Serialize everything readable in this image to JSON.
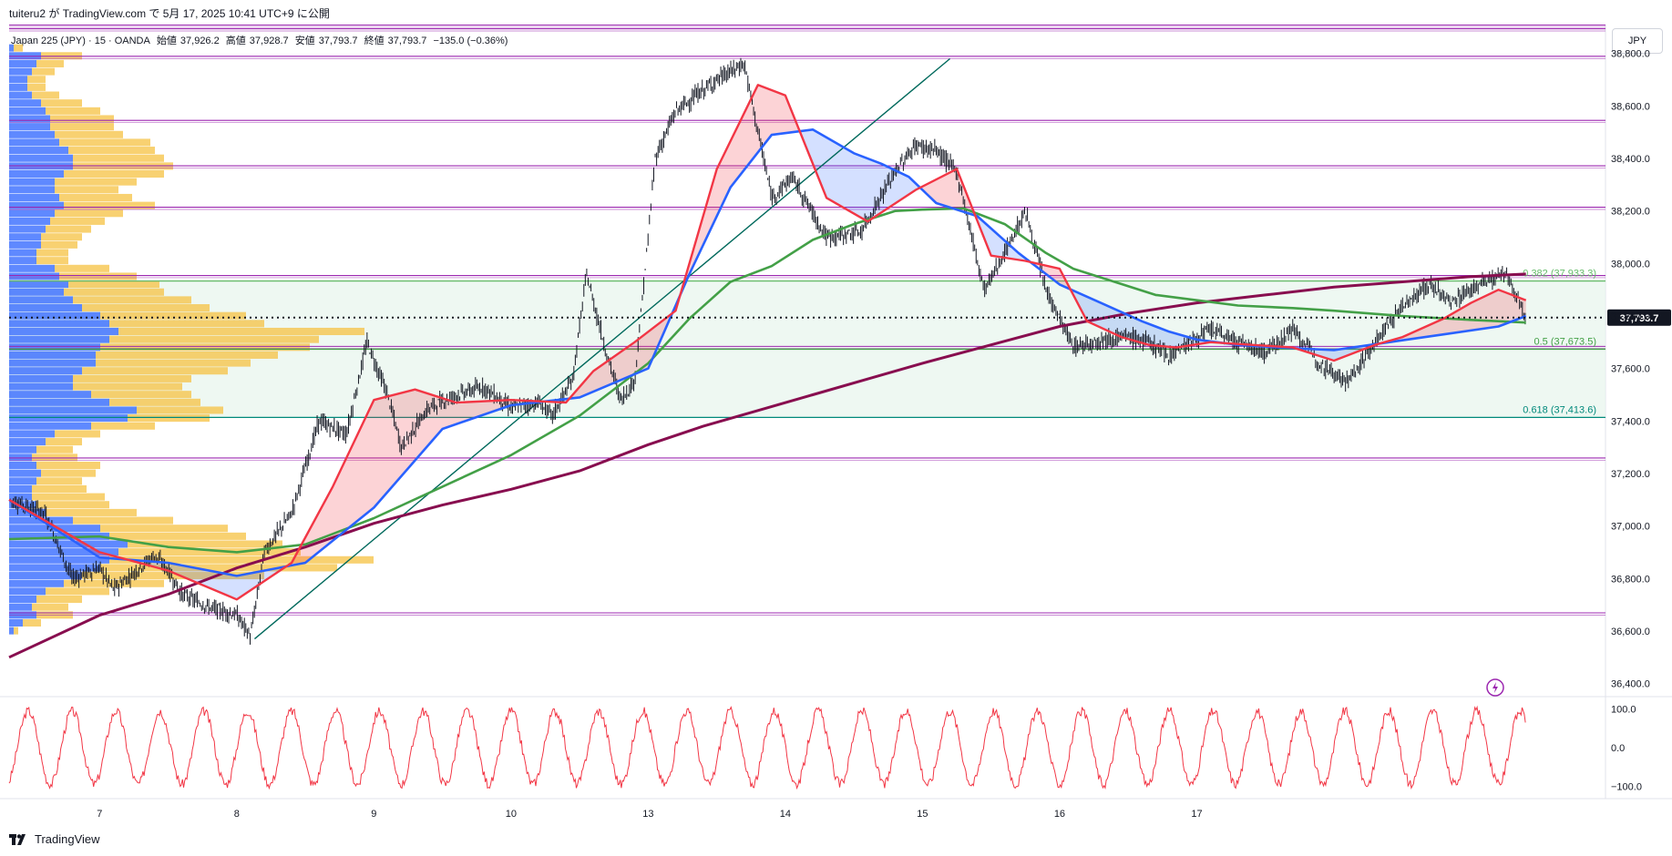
{
  "header": {
    "publish_line": "tuiteru2 が TradingView.com で 5月 17, 2025 10:41 UTC+9 に公開"
  },
  "symbol_info": {
    "name": "Japan 225 (JPY) · 15 · OANDA",
    "open_label": "始値",
    "open": "37,926.2",
    "high_label": "高値",
    "high": "37,928.7",
    "low_label": "安値",
    "low": "37,793.7",
    "close_label": "終値",
    "close": "37,793.7",
    "change": "−135.0 (−0.36%)"
  },
  "currency": "JPY",
  "footer": {
    "brand": "TradingView"
  },
  "colors": {
    "bull": "#131722",
    "ema_fast": "#f23645",
    "ema_mid": "#2962ff",
    "ema_green": "#43a047",
    "ema_long": "#880e4f",
    "level_line": "#9c27b0",
    "fib_fill": "#e8f5ee",
    "fib_0382": "#66bb6a",
    "fib_05": "#43a047",
    "fib_0618": "#00897b",
    "profile_blue": "#2962ff",
    "profile_yellow": "#f5c242",
    "oscillator": "#f23645"
  },
  "chart_data": {
    "type": "line",
    "title": "",
    "x_tick_labels": [
      "7",
      "8",
      "9",
      "10",
      "13",
      "14",
      "15",
      "16",
      "17"
    ],
    "y_tick_labels": [
      "38,800.0",
      "38,600.0",
      "38,400.0",
      "38,200.0",
      "38,000.0",
      "37,800.0",
      "37,600.0",
      "37,400.0",
      "37,200.0",
      "37,000.0",
      "36,800.0",
      "36,600.0",
      "36,400.0"
    ],
    "y_ticks": [
      38800,
      38600,
      38400,
      38200,
      38000,
      37800,
      37600,
      37400,
      37200,
      37000,
      36800,
      36600,
      36400
    ],
    "ylim": [
      36350,
      38910
    ],
    "x_range": [
      6.34,
      17.98
    ],
    "last_price": 37793.7,
    "last_price_label": "37,793.7",
    "horizontal_levels": [
      38904,
      38890,
      38785,
      38541,
      38368,
      38210,
      37950,
      37680,
      37255,
      36665
    ],
    "fibonacci": [
      {
        "label": "0.382 (37,933.3)",
        "value": 37933.3
      },
      {
        "label": "0.5 (37,673.5)",
        "value": 37673.5
      },
      {
        "label": "0.618 (37,413.6)",
        "value": 37413.6
      }
    ],
    "trendline": {
      "start": [
        8.13,
        36570
      ],
      "end": [
        13.2,
        38780
      ]
    },
    "price_series": {
      "name": "",
      "x": [
        6.34,
        6.6,
        6.8,
        7.0,
        7.1,
        7.2,
        7.4,
        7.5,
        7.6,
        7.8,
        8.0,
        8.1,
        8.2,
        8.4,
        8.6,
        8.8,
        8.95,
        9.1,
        9.2,
        9.4,
        9.6,
        9.8,
        10.0,
        10.2,
        10.3,
        10.45,
        10.55,
        10.7,
        10.8,
        10.9,
        11.0,
        11.05,
        11.2,
        11.5,
        11.7,
        11.9,
        12.05,
        12.3,
        12.55,
        12.8,
        12.95,
        13.1,
        13.25,
        13.45,
        13.6,
        13.75,
        13.9,
        14.1,
        14.3,
        14.5,
        14.65,
        14.8,
        14.95,
        15.1,
        15.3,
        15.5,
        15.7,
        15.9,
        16.1,
        16.3,
        16.5,
        16.7,
        16.85,
        17.05,
        17.25,
        17.4
      ],
      "y": [
        37100,
        37050,
        36800,
        36840,
        36760,
        36800,
        36890,
        36830,
        36740,
        36690,
        36660,
        36580,
        36900,
        37050,
        37400,
        37350,
        37700,
        37500,
        37300,
        37450,
        37500,
        37530,
        37450,
        37470,
        37420,
        37560,
        37960,
        37650,
        37480,
        37550,
        38100,
        38400,
        38580,
        38700,
        38760,
        38250,
        38330,
        38100,
        38120,
        38350,
        38450,
        38430,
        38350,
        37900,
        38040,
        38200,
        37900,
        37680,
        37710,
        37720,
        37700,
        37650,
        37700,
        37750,
        37700,
        37660,
        37750,
        37620,
        37550,
        37700,
        37840,
        37920,
        37850,
        37920,
        37960,
        37793.7
      ]
    },
    "ema_fast": {
      "name": "",
      "x": [
        6.34,
        7.0,
        7.5,
        8.0,
        8.4,
        8.7,
        9.0,
        9.3,
        9.6,
        10.0,
        10.4,
        10.6,
        10.9,
        11.2,
        11.5,
        11.8,
        12.0,
        12.3,
        12.6,
        12.95,
        13.25,
        13.5,
        13.75,
        14.0,
        14.2,
        14.45,
        14.65,
        14.85,
        15.1,
        15.4,
        15.7,
        16.0,
        16.3,
        16.5,
        16.8,
        17.0,
        17.2,
        17.4
      ],
      "y": [
        37100,
        36900,
        36830,
        36720,
        36860,
        37150,
        37480,
        37520,
        37470,
        37480,
        37470,
        37590,
        37700,
        37820,
        38360,
        38680,
        38640,
        38250,
        38160,
        38280,
        38360,
        38030,
        38010,
        37980,
        37780,
        37720,
        37690,
        37680,
        37700,
        37690,
        37680,
        37630,
        37690,
        37720,
        37790,
        37850,
        37900,
        37860
      ]
    },
    "ema_mid": {
      "name": "",
      "x": [
        6.34,
        7.0,
        7.5,
        8.0,
        8.5,
        9.0,
        9.5,
        10.0,
        10.5,
        11.0,
        11.3,
        11.6,
        11.9,
        12.2,
        12.5,
        12.7,
        12.9,
        13.1,
        13.4,
        13.7,
        14.0,
        14.3,
        14.6,
        14.8,
        15.0,
        15.3,
        15.6,
        16.0,
        16.4,
        16.8,
        17.2,
        17.4
      ],
      "y": [
        37100,
        36880,
        36860,
        36810,
        36860,
        37070,
        37370,
        37460,
        37490,
        37600,
        37960,
        38290,
        38490,
        38510,
        38420,
        38380,
        38330,
        38230,
        38180,
        38040,
        37920,
        37850,
        37780,
        37740,
        37710,
        37690,
        37680,
        37670,
        37700,
        37730,
        37760,
        37800
      ]
    },
    "ema_green": {
      "name": "",
      "x": [
        6.34,
        7.0,
        7.5,
        8.0,
        8.5,
        9.0,
        9.5,
        10.0,
        10.5,
        11.0,
        11.3,
        11.6,
        11.9,
        12.2,
        12.5,
        12.8,
        13.0,
        13.3,
        13.6,
        13.9,
        14.1,
        14.4,
        14.7,
        15.0,
        15.3,
        15.7,
        16.0,
        16.5,
        17.0,
        17.4
      ],
      "y": [
        36950,
        36960,
        36920,
        36900,
        36930,
        37030,
        37150,
        37270,
        37420,
        37620,
        37790,
        37930,
        37990,
        38090,
        38150,
        38200,
        38205,
        38210,
        38150,
        38040,
        37980,
        37930,
        37880,
        37860,
        37840,
        37830,
        37820,
        37800,
        37785,
        37775
      ]
    },
    "ema_long": {
      "name": "",
      "x": [
        6.34,
        7.0,
        7.5,
        8.0,
        8.5,
        9.0,
        9.5,
        10.0,
        10.5,
        11.0,
        11.4,
        11.8,
        12.2,
        12.6,
        13.0,
        13.5,
        14.0,
        14.5,
        15.0,
        15.5,
        16.0,
        16.5,
        17.0,
        17.4
      ],
      "y": [
        36500,
        36660,
        36740,
        36840,
        36920,
        37010,
        37080,
        37140,
        37210,
        37310,
        37380,
        37440,
        37500,
        37560,
        37620,
        37690,
        37760,
        37810,
        37850,
        37880,
        37910,
        37930,
        37950,
        37960
      ]
    },
    "volume_profile": {
      "name": "",
      "price": [
        38820,
        38790,
        38760,
        38730,
        38700,
        38670,
        38640,
        38610,
        38580,
        38550,
        38520,
        38490,
        38460,
        38430,
        38400,
        38370,
        38340,
        38310,
        38280,
        38250,
        38220,
        38190,
        38160,
        38130,
        38100,
        38070,
        38040,
        38010,
        37980,
        37950,
        37920,
        37890,
        37860,
        37830,
        37800,
        37770,
        37740,
        37710,
        37680,
        37650,
        37620,
        37590,
        37560,
        37530,
        37500,
        37470,
        37440,
        37410,
        37380,
        37350,
        37320,
        37290,
        37260,
        37230,
        37200,
        37170,
        37140,
        37110,
        37080,
        37050,
        37020,
        36990,
        36960,
        36930,
        36900,
        36870,
        36840,
        36810,
        36780,
        36750,
        36720,
        36690,
        36660,
        36630,
        36600
      ],
      "blue": [
        5,
        35,
        30,
        25,
        20,
        20,
        25,
        35,
        40,
        45,
        45,
        50,
        55,
        65,
        70,
        70,
        60,
        50,
        50,
        55,
        60,
        50,
        45,
        40,
        35,
        35,
        30,
        30,
        50,
        55,
        65,
        60,
        70,
        80,
        100,
        110,
        120,
        110,
        100,
        95,
        95,
        80,
        70,
        70,
        90,
        110,
        140,
        130,
        90,
        50,
        40,
        30,
        25,
        30,
        35,
        30,
        25,
        25,
        30,
        40,
        70,
        100,
        110,
        130,
        120,
        110,
        100,
        80,
        60,
        40,
        30,
        25,
        30,
        15,
        5
      ],
      "yellow": [
        10,
        45,
        30,
        25,
        20,
        20,
        30,
        45,
        60,
        70,
        70,
        75,
        100,
        95,
        100,
        110,
        110,
        90,
        70,
        80,
        100,
        75,
        60,
        50,
        45,
        40,
        35,
        35,
        60,
        85,
        100,
        110,
        130,
        140,
        160,
        170,
        270,
        230,
        230,
        200,
        170,
        160,
        130,
        120,
        110,
        100,
        95,
        90,
        70,
        50,
        40,
        40,
        50,
        70,
        60,
        50,
        60,
        80,
        80,
        100,
        110,
        140,
        150,
        170,
        200,
        290,
        260,
        200,
        110,
        70,
        50,
        40,
        40,
        20,
        5
      ]
    },
    "oscillator": {
      "name": "",
      "y_tick_labels": [
        "100.0",
        "0.0",
        "−100.0"
      ],
      "y_ticks": [
        100,
        0,
        -100
      ],
      "ylim": [
        -130,
        130
      ],
      "period_days": 0.32
    }
  }
}
